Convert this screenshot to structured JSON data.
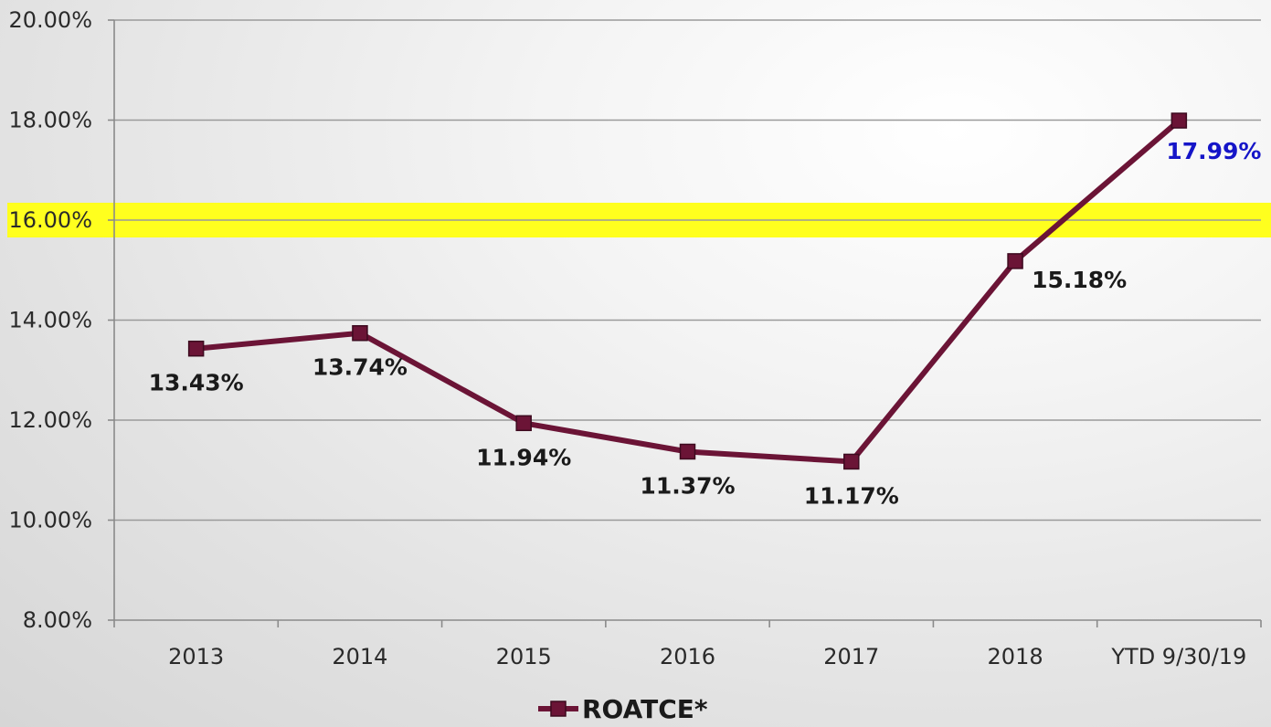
{
  "chart_data": {
    "type": "line",
    "categories": [
      "2013",
      "2014",
      "2015",
      "2016",
      "2017",
      "2018",
      "YTD 9/30/19"
    ],
    "series": [
      {
        "name": "ROATCE*",
        "values": [
          13.43,
          13.74,
          11.94,
          11.37,
          11.17,
          15.18,
          17.99
        ],
        "labels": [
          "13.43%",
          "13.74%",
          "11.94%",
          "11.37%",
          "11.17%",
          "15.18%",
          "17.99%"
        ],
        "color": "#6b1436",
        "marker": "square"
      }
    ],
    "ylim": [
      8,
      20
    ],
    "yticks": [
      8,
      10,
      12,
      14,
      16,
      18,
      20
    ],
    "ytick_labels": [
      "8.00%",
      "10.00%",
      "12.00%",
      "14.00%",
      "16.00%",
      "18.00%",
      "20.00%"
    ],
    "highlight": {
      "value": 16,
      "color": "#ffff1e"
    },
    "highlight_label_color": "#1515c8",
    "label_color": "#1a1a1a",
    "grid": true,
    "legend": {
      "position": "bottom"
    },
    "title": "",
    "xlabel": "",
    "ylabel": ""
  }
}
